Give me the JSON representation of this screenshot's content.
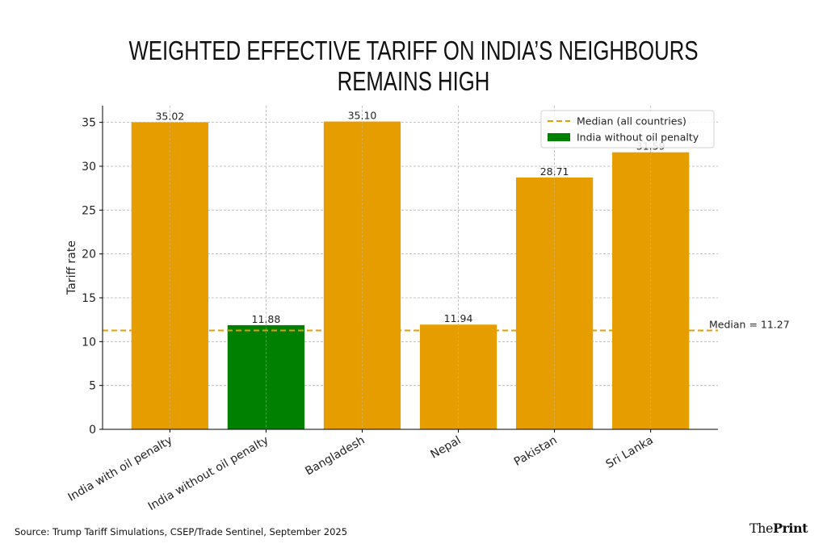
{
  "title": "WEIGHTED EFFECTIVE TARIFF ON INDIA’S NEIGHBOURS REMAINS HIGH",
  "source": "Source: Trump Tariff Simulations, CSEP/Trade Sentinel, September 2025",
  "logo": {
    "part1": "The",
    "part2": "Print"
  },
  "chart_data": {
    "type": "bar",
    "title": "",
    "xlabel": "",
    "ylabel": "Tariff rate",
    "categories": [
      "India with oil penalty",
      "India without oil penalty",
      "Bangladesh",
      "Nepal",
      "Pakistan",
      "Sri Lanka"
    ],
    "values": [
      35.02,
      11.88,
      35.1,
      11.94,
      28.71,
      31.59
    ],
    "data_labels": [
      "35.02",
      "11.88",
      "35.10",
      "11.94",
      "28.71",
      "31.59"
    ],
    "bar_colors": [
      "#e59d00",
      "#008000",
      "#e59d00",
      "#e59d00",
      "#e59d00",
      "#e59d00"
    ],
    "ylim": [
      0,
      36.9
    ],
    "yticks": [
      0,
      5,
      10,
      15,
      20,
      25,
      30,
      35
    ],
    "grid": true,
    "median": {
      "value": 11.27,
      "label": "Median = 11.27",
      "color": "#e59d00"
    },
    "legend": {
      "placement": "top-right",
      "entries": [
        {
          "label": "Median (all countries)",
          "style": "dashed-line",
          "color": "#e59d00"
        },
        {
          "label": "India without oil penalty",
          "style": "patch",
          "color": "#008000"
        }
      ]
    }
  }
}
